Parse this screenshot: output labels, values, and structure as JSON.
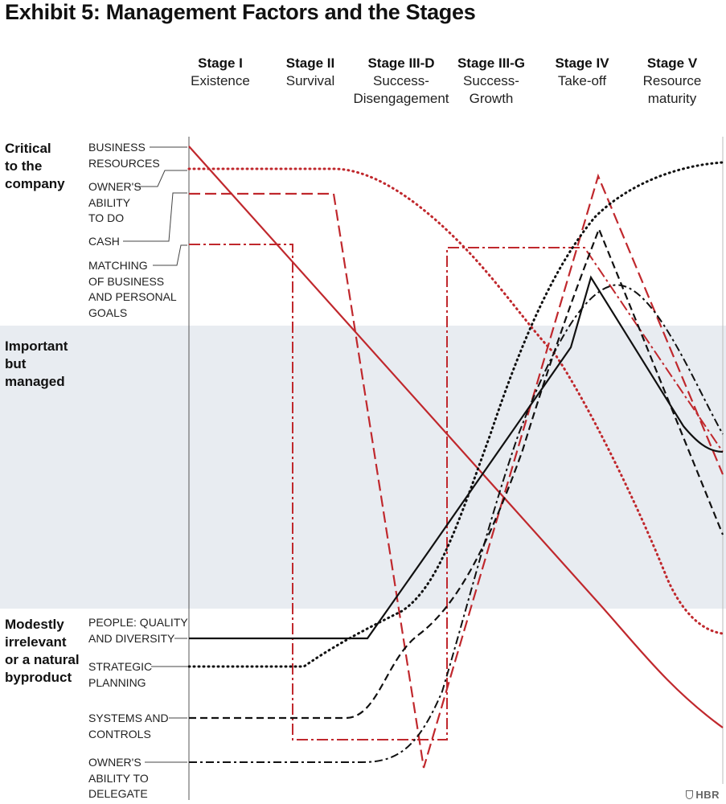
{
  "title": "Exhibit 5: Management Factors and the Stages",
  "logo": "HBR",
  "colors": {
    "red": "#c0282d",
    "black": "#111111",
    "band": "#e8ecf1"
  },
  "chart_data": {
    "type": "line",
    "x": [
      "Stage I",
      "Stage II",
      "Stage III-D",
      "Stage III-G",
      "Stage IV",
      "Stage V"
    ],
    "stages": [
      {
        "name": "Stage I",
        "desc": "Existence"
      },
      {
        "name": "Stage II",
        "desc": "Survival"
      },
      {
        "name": "Stage III-D",
        "desc": "Success-\nDisengagement"
      },
      {
        "name": "Stage III-G",
        "desc": "Success-\nGrowth"
      },
      {
        "name": "Stage IV",
        "desc": "Take-off"
      },
      {
        "name": "Stage V",
        "desc": "Resource\nmaturity"
      }
    ],
    "y_bands": [
      {
        "label": "Critical\nto the\ncompany"
      },
      {
        "label": "Important\nbut managed"
      },
      {
        "label": "Modestly\nirrelevant\nor a natural\nbyproduct"
      }
    ],
    "legend": "left",
    "series": [
      {
        "name": "BUSINESS\nRESOURCES",
        "color": "red",
        "style": "solid"
      },
      {
        "name": "OWNER'S\nABILITY\nTO DO",
        "color": "red",
        "style": "dotted"
      },
      {
        "name": "CASH",
        "color": "red",
        "style": "dashed"
      },
      {
        "name": "MATCHING\nOF BUSINESS\nAND PERSONAL\nGOALS",
        "color": "red",
        "style": "dashdot"
      },
      {
        "name": "PEOPLE: QUALITY\nAND DIVERSITY",
        "color": "black",
        "style": "solid"
      },
      {
        "name": "STRATEGIC\nPLANNING",
        "color": "black",
        "style": "dotted"
      },
      {
        "name": "SYSTEMS AND\nCONTROLS",
        "color": "black",
        "style": "dashed"
      },
      {
        "name": "OWNER'S\nABILITY TO\nDELEGATE",
        "color": "black",
        "style": "dashdot"
      }
    ]
  }
}
